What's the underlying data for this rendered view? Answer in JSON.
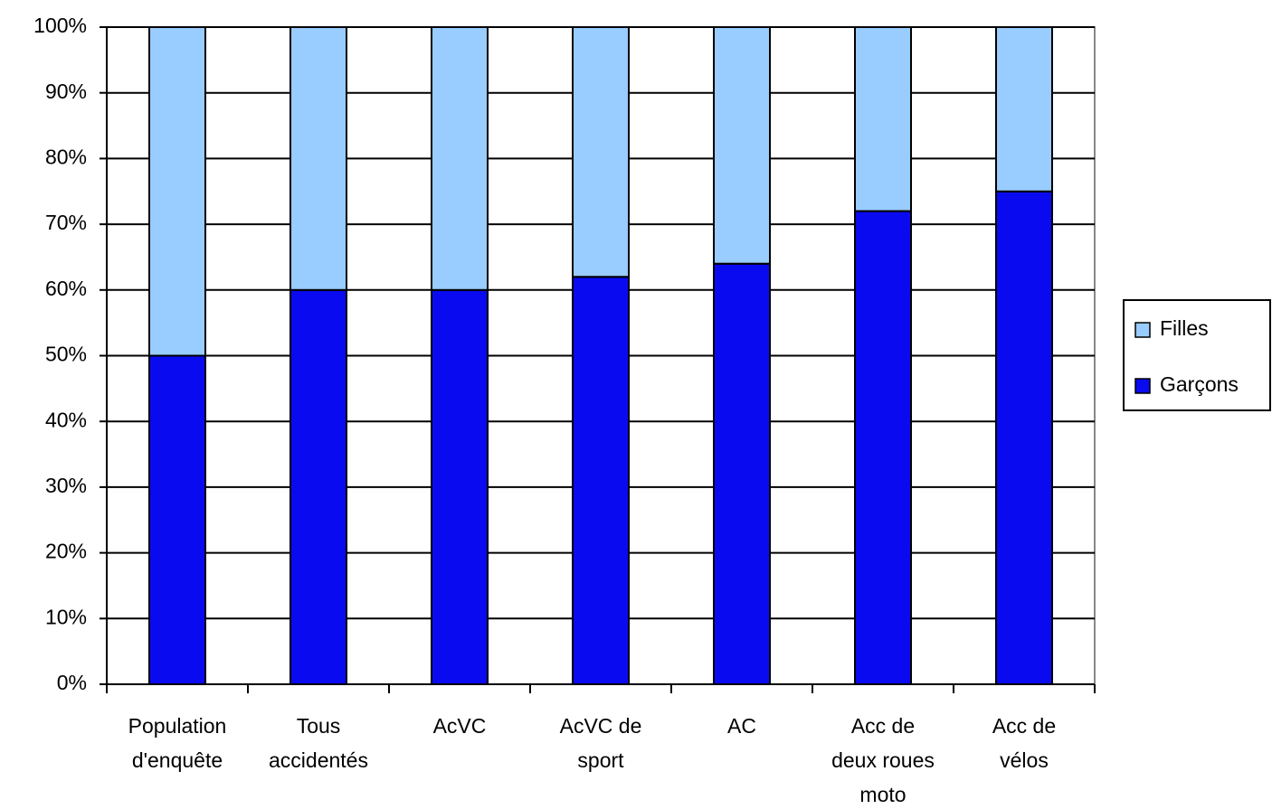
{
  "chart_data": {
    "type": "stacked_bar",
    "categories": [
      [
        "Population",
        "d'enquête"
      ],
      [
        "Tous",
        "accidentés"
      ],
      [
        "AcVC"
      ],
      [
        "AcVC de",
        "sport"
      ],
      [
        "AC"
      ],
      [
        "Acc de",
        "deux roues",
        "moto"
      ],
      [
        "Acc de",
        "vélos"
      ]
    ],
    "series": [
      {
        "name": "Garçons",
        "color": "#0a0af0",
        "values": [
          50,
          60,
          60,
          62,
          64,
          72,
          75
        ]
      },
      {
        "name": "Filles",
        "color": "#99ccff",
        "values": [
          50,
          40,
          40,
          38,
          36,
          28,
          25
        ]
      }
    ],
    "ylim": [
      0,
      100
    ],
    "yticks": [
      {
        "value": 0,
        "label": "0%"
      },
      {
        "value": 10,
        "label": "10%"
      },
      {
        "value": 20,
        "label": "20%"
      },
      {
        "value": 30,
        "label": "30%"
      },
      {
        "value": 40,
        "label": "40%"
      },
      {
        "value": 50,
        "label": "50%"
      },
      {
        "value": 60,
        "label": "60%"
      },
      {
        "value": 70,
        "label": "70%"
      },
      {
        "value": 80,
        "label": "80%"
      },
      {
        "value": 90,
        "label": "90%"
      },
      {
        "value": 100,
        "label": "100%"
      }
    ],
    "grid": true,
    "legend": "right"
  }
}
